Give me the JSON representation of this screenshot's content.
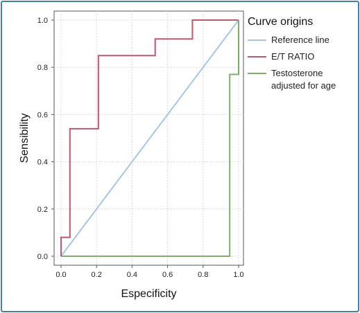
{
  "chart_data": {
    "type": "line",
    "xlabel": "Especificity",
    "ylabel": "Sensibility",
    "xlim": [
      0,
      1
    ],
    "ylim": [
      0,
      1
    ],
    "xticks": [
      "0.0",
      "0.2",
      "0.4",
      "0.6",
      "0.8",
      "1.0"
    ],
    "yticks": [
      "0.0",
      "0.2",
      "0.4",
      "0.6",
      "0.8",
      "1.0"
    ],
    "grid": true,
    "legend_position": "right",
    "legend_title": "Curve origins",
    "series": [
      {
        "name": "Reference line",
        "color": "#a9c5e3",
        "x": [
          0,
          1
        ],
        "y": [
          0,
          1
        ]
      },
      {
        "name": "E/T RATIO",
        "color": "#c3566f",
        "x": [
          0,
          0,
          0.05,
          0.05,
          0.21,
          0.21,
          0.53,
          0.53,
          0.74,
          0.74,
          1.0
        ],
        "y": [
          0,
          0.08,
          0.08,
          0.54,
          0.54,
          0.85,
          0.85,
          0.92,
          0.92,
          1.0,
          1.0
        ]
      },
      {
        "name": "Testosterone\nadjusted for age",
        "color": "#7caf6b",
        "x": [
          0,
          0.95,
          0.95,
          1.0,
          1.0
        ],
        "y": [
          0,
          0,
          0.77,
          0.77,
          1.0
        ]
      }
    ]
  }
}
